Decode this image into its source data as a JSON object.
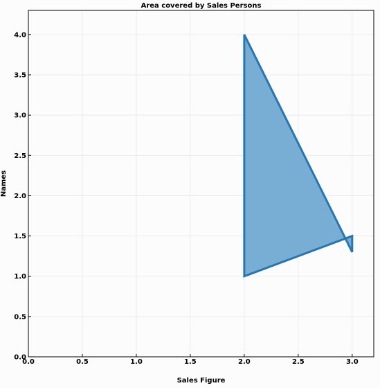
{
  "chart_data": {
    "type": "area",
    "title": "Area covered by Sales Persons",
    "xlabel": "Sales Figure",
    "ylabel": "Names",
    "xlim": [
      0.0,
      3.2
    ],
    "ylim": [
      0.0,
      4.3
    ],
    "grid": true,
    "x_ticks": [
      0.0,
      0.5,
      1.0,
      1.5,
      2.0,
      2.5,
      3.0
    ],
    "y_ticks": [
      0.0,
      0.5,
      1.0,
      1.5,
      2.0,
      2.5,
      3.0,
      3.5,
      4.0
    ],
    "x_tick_labels": [
      "0.0",
      "0.5",
      "1.0",
      "1.5",
      "2.0",
      "2.5",
      "3.0"
    ],
    "y_tick_labels": [
      "0.0",
      "0.5",
      "1.0",
      "1.5",
      "2.0",
      "2.5",
      "3.0",
      "3.5",
      "4.0"
    ],
    "series": [
      {
        "points": [
          {
            "x": 2.0,
            "y": 4.0
          },
          {
            "x": 3.0,
            "y": 1.3
          },
          {
            "x": 3.0,
            "y": 1.5
          },
          {
            "x": 2.0,
            "y": 1.0
          }
        ],
        "fill_color": "#79aed4",
        "line_color": "#2477b4"
      }
    ],
    "colors": {
      "background": "#fcfcfc",
      "grid": "#e8e8e8",
      "axes": "#000000"
    }
  }
}
